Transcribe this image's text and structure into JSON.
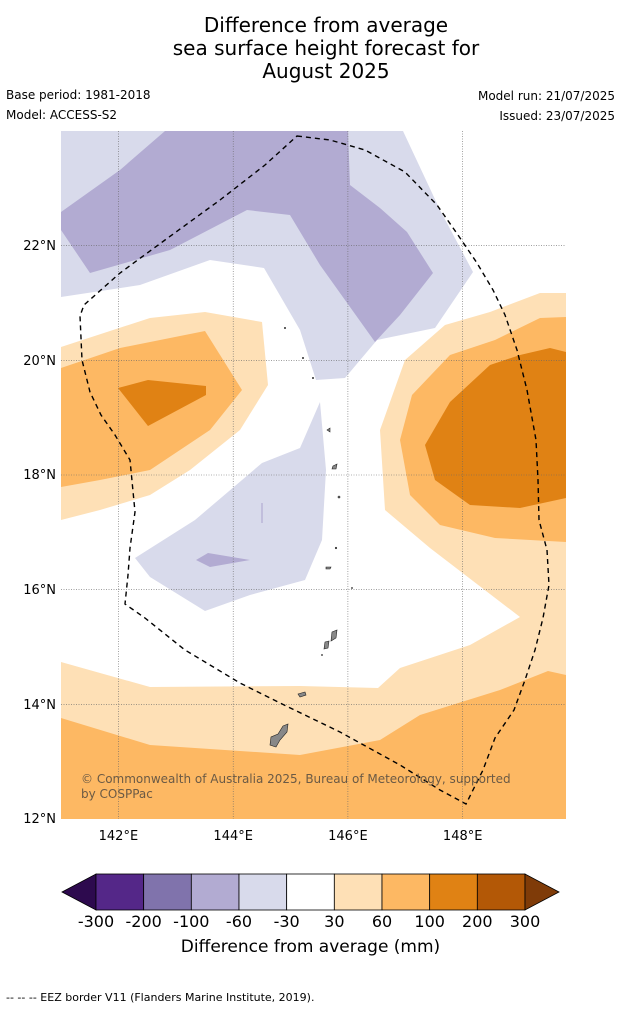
{
  "title": {
    "line1": "Difference from average",
    "line2": "sea surface height forecast for",
    "line3": "August 2025"
  },
  "meta": {
    "base_period": "Base period: 1981-2018",
    "model": "Model: ACCESS-S2",
    "model_run": "Model run: 21/07/2025",
    "issued": "Issued: 23/07/2025"
  },
  "map": {
    "lon_range": [
      141,
      149.8
    ],
    "lat_range": [
      12,
      24
    ],
    "x_ticks": [
      "142°E",
      "144°E",
      "146°E",
      "148°E"
    ],
    "y_ticks": [
      "22°N",
      "20°N",
      "18°N",
      "16°N",
      "14°N",
      "12°N"
    ],
    "gridlines": true,
    "copyright": "© Commonwealth of Australia 2025, Bureau of Meteorology, supported by COSPPac",
    "eez_border": "dashed",
    "land_color": "#888888"
  },
  "colorbar": {
    "label": "Difference from average (mm)",
    "ticks": [
      "-300",
      "-200",
      "-100",
      "-60",
      "-30",
      "30",
      "60",
      "100",
      "200",
      "300"
    ],
    "colors": [
      "#2d0a4e",
      "#542788",
      "#8073ac",
      "#b2abd2",
      "#d8daeb",
      "#ffffff",
      "#fee0b6",
      "#fdb863",
      "#e08214",
      "#b35806",
      "#7f3b08"
    ]
  },
  "footnote": "--  --  -- EEZ border V11 (Flanders Marine Institute, 2019)."
}
